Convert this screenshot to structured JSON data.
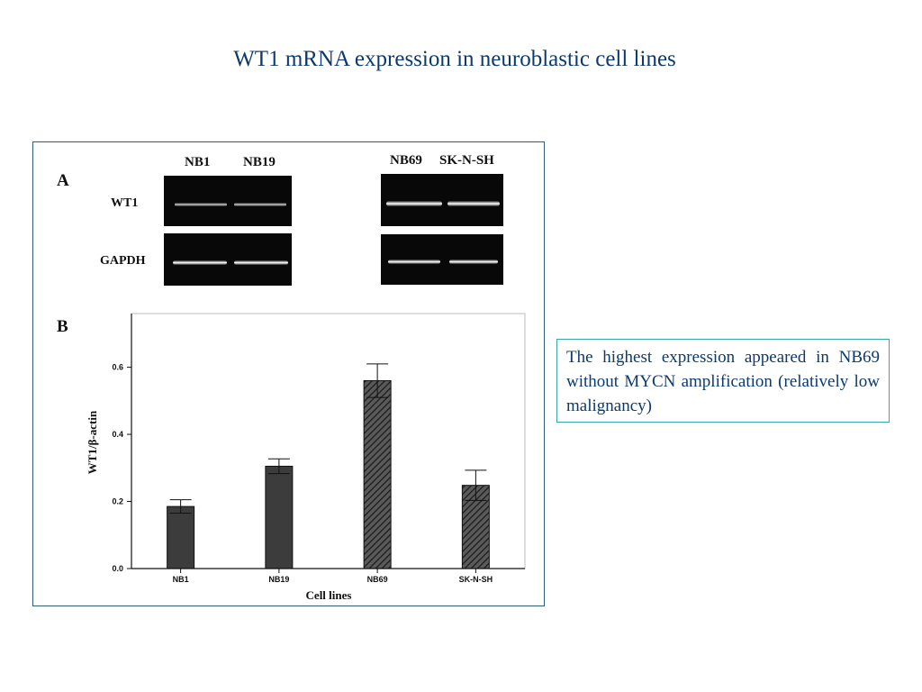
{
  "slide": {
    "title": "WT1 mRNA expression in neuroblastic cell lines",
    "note": "The highest expression appeared in NB69 without MYCN amplification (relatively low malignancy)"
  },
  "panel_a": {
    "letter": "A",
    "lanes_left": [
      "NB1",
      "NB19"
    ],
    "lanes_right": [
      "NB69",
      "SK-N-SH"
    ],
    "rows": [
      "WT1",
      "GAPDH"
    ]
  },
  "chart_data": {
    "type": "bar",
    "panel_letter": "B",
    "categories": [
      "NB1",
      "NB19",
      "NB69",
      "SK-N-SH"
    ],
    "values": [
      0.185,
      0.305,
      0.56,
      0.248
    ],
    "errors": [
      0.02,
      0.022,
      0.05,
      0.045
    ],
    "bar_fill": [
      "solid",
      "solid",
      "hatched",
      "hatched"
    ],
    "bar_color": "#3c3c3c",
    "xlabel": "Cell lines",
    "ylabel": "WT1/β-actin",
    "yticks": [
      "0.0",
      "0.2",
      "0.4",
      "0.6"
    ],
    "ylim": [
      0,
      0.76
    ],
    "grid": false
  }
}
